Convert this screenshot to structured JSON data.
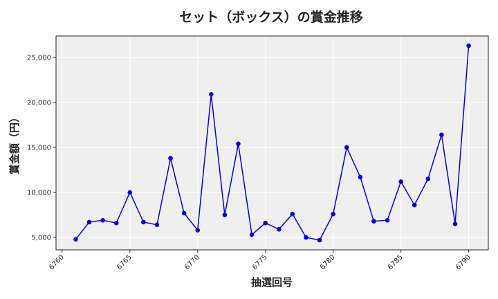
{
  "chart_data": {
    "type": "line",
    "title": "セット（ボックス）の賞金推移",
    "xlabel": "抽選回号",
    "ylabel": "賞金額（円）",
    "x": [
      6761,
      6762,
      6763,
      6764,
      6765,
      6766,
      6767,
      6768,
      6769,
      6770,
      6771,
      6772,
      6773,
      6774,
      6775,
      6776,
      6777,
      6778,
      6779,
      6780,
      6781,
      6782,
      6783,
      6784,
      6785,
      6786,
      6787,
      6788,
      6789,
      6790
    ],
    "series": [
      {
        "values": [
          4800,
          6700,
          6900,
          6600,
          10000,
          6700,
          6400,
          13800,
          7700,
          5800,
          20900,
          7500,
          15400,
          5300,
          6600,
          5900,
          7600,
          5000,
          4700,
          7600,
          15000,
          11700,
          6800,
          6900,
          11200,
          8600,
          11500,
          16400,
          6500,
          26300
        ]
      }
    ],
    "xticks": [
      "6760",
      "6765",
      "6770",
      "6775",
      "6780",
      "6785",
      "6790"
    ],
    "yticks": [
      "5,000",
      "10,000",
      "15,000",
      "20,000",
      "25,000"
    ],
    "xlim": [
      6759.55,
      6791.45
    ],
    "ylim": [
      3620,
      27380
    ],
    "grid": true,
    "line_color": "#0000dd",
    "plot_bg": "#efefef"
  }
}
